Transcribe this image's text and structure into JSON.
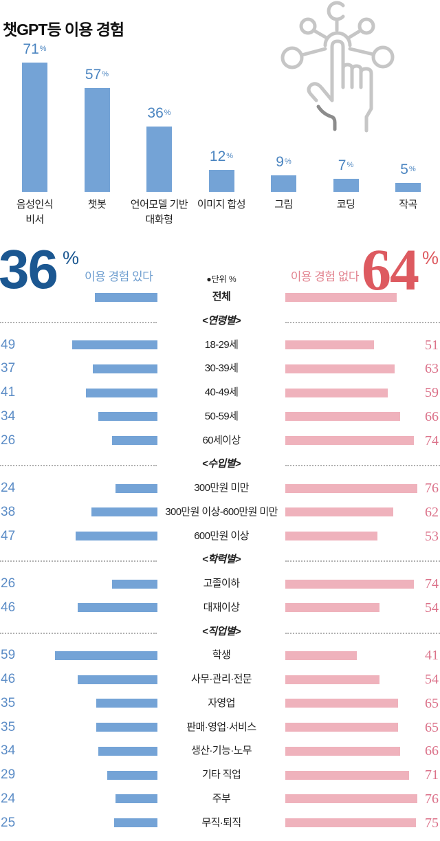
{
  "title": "챗GPT등 이용 경험",
  "summary": {
    "yes_value": "36",
    "yes_unit": "%",
    "yes_label": "이용 경험 있다",
    "no_value": "64",
    "no_unit": "%",
    "no_label": "이용 경험 없다",
    "unit_note": "●단위 %"
  },
  "icon": "hand-touch-network-icon",
  "colors": {
    "top_bar": "#74a3d6",
    "top_value_text": "#4a84c0",
    "yes_bar": "#74a3d6",
    "no_bar": "#efb2bc",
    "yes_big_number": "#1b5791",
    "no_big_number": "#dd5a60",
    "yes_numbers": "#5b8cc6",
    "no_numbers": "#db7189"
  },
  "chart_data": [
    {
      "type": "bar",
      "title": "챗GPT등 이용 경험",
      "categories": [
        "음성인식\n비서",
        "챗봇",
        "언어모델 기반\n대화형",
        "이미지 합성",
        "그림",
        "코딩",
        "작곡"
      ],
      "values": [
        71,
        57,
        36,
        12,
        9,
        7,
        5
      ],
      "unit": "%",
      "xlabel": "",
      "ylabel": "%",
      "ylim": [
        0,
        100
      ],
      "grid": false,
      "legend": null
    },
    {
      "type": "bar",
      "orientation": "horizontal",
      "layout": "diverging",
      "title": "이용 경험 있다 / 이용 경험 없다",
      "unit": "%",
      "series": [
        {
          "name": "이용 경험 있다",
          "values": [
            36,
            49,
            37,
            41,
            34,
            26,
            24,
            38,
            47,
            26,
            46,
            59,
            46,
            35,
            35,
            34,
            29,
            24,
            25
          ]
        },
        {
          "name": "이용 경험 없다",
          "values": [
            64,
            51,
            63,
            59,
            66,
            74,
            76,
            62,
            53,
            74,
            54,
            41,
            54,
            65,
            65,
            66,
            71,
            76,
            75
          ]
        }
      ],
      "categories": [
        "전체",
        "18-29세",
        "30-39세",
        "40-49세",
        "50-59세",
        "60세이상",
        "300만원 미만",
        "300만원 이상-600만원 미만",
        "600만원 이상",
        "고졸이하",
        "대재이상",
        "학생",
        "사무·관리·전문",
        "자영업",
        "판매·영업·서비스",
        "생산·기능·노무",
        "기타 직업",
        "주부",
        "무직·퇴직"
      ],
      "rows": [
        {
          "kind": "total",
          "label": "전체",
          "yes": 36,
          "no": 64
        },
        {
          "kind": "section",
          "label": "<연령별>"
        },
        {
          "kind": "item",
          "label": "18-29세",
          "yes": 49,
          "no": 51
        },
        {
          "kind": "item",
          "label": "30-39세",
          "yes": 37,
          "no": 63
        },
        {
          "kind": "item",
          "label": "40-49세",
          "yes": 41,
          "no": 59
        },
        {
          "kind": "item",
          "label": "50-59세",
          "yes": 34,
          "no": 66
        },
        {
          "kind": "item",
          "label": "60세이상",
          "yes": 26,
          "no": 74
        },
        {
          "kind": "section",
          "label": "<수입별>"
        },
        {
          "kind": "item",
          "label": "300만원 미만",
          "yes": 24,
          "no": 76
        },
        {
          "kind": "item",
          "label": "300만원 이상-600만원 미만",
          "yes": 38,
          "no": 62
        },
        {
          "kind": "item",
          "label": "600만원 이상",
          "yes": 47,
          "no": 53
        },
        {
          "kind": "section",
          "label": "<학력별>"
        },
        {
          "kind": "item",
          "label": "고졸이하",
          "yes": 26,
          "no": 74
        },
        {
          "kind": "item",
          "label": "대재이상",
          "yes": 46,
          "no": 54
        },
        {
          "kind": "section",
          "label": "<직업별>"
        },
        {
          "kind": "item",
          "label": "학생",
          "yes": 59,
          "no": 41
        },
        {
          "kind": "item",
          "label": "사무·관리·전문",
          "yes": 46,
          "no": 54
        },
        {
          "kind": "item",
          "label": "자영업",
          "yes": 35,
          "no": 65
        },
        {
          "kind": "item",
          "label": "판매·영업·서비스",
          "yes": 35,
          "no": 65
        },
        {
          "kind": "item",
          "label": "생산·기능·노무",
          "yes": 34,
          "no": 66
        },
        {
          "kind": "item",
          "label": "기타 직업",
          "yes": 29,
          "no": 71
        },
        {
          "kind": "item",
          "label": "주부",
          "yes": 24,
          "no": 76
        },
        {
          "kind": "item",
          "label": "무직·퇴직",
          "yes": 25,
          "no": 75
        }
      ]
    }
  ]
}
